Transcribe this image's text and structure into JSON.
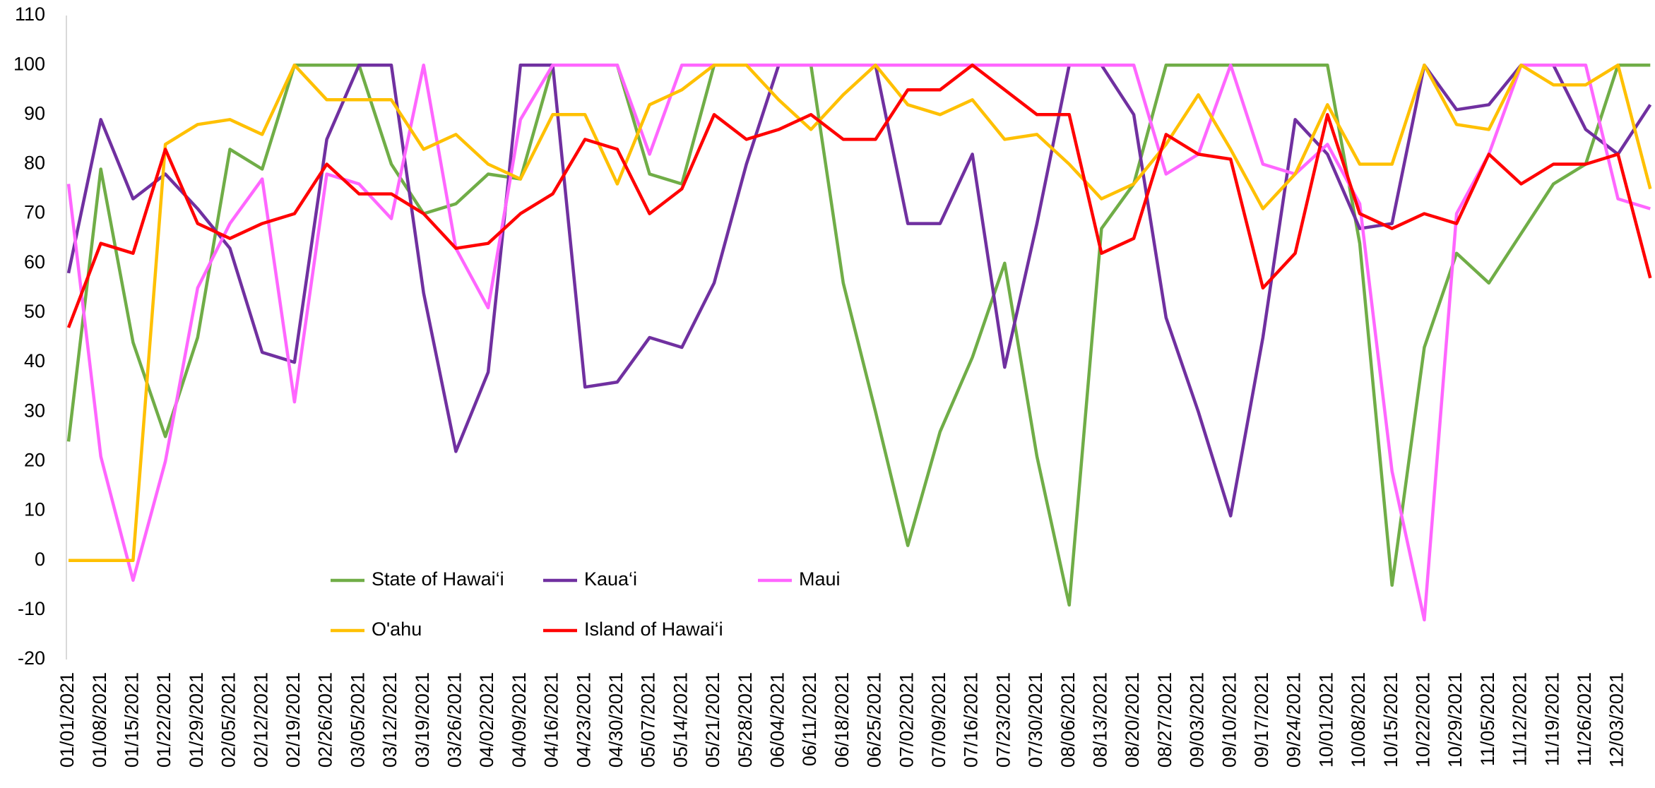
{
  "chart_data": {
    "type": "line",
    "categories": [
      "01/01/2021",
      "01/08/2021",
      "01/15/2021",
      "01/22/2021",
      "01/29/2021",
      "02/05/2021",
      "02/12/2021",
      "02/19/2021",
      "02/26/2021",
      "03/05/2021",
      "03/12/2021",
      "03/19/2021",
      "03/26/2021",
      "04/02/2021",
      "04/09/2021",
      "04/16/2021",
      "04/23/2021",
      "04/30/2021",
      "05/07/2021",
      "05/14/2021",
      "05/21/2021",
      "05/28/2021",
      "06/04/2021",
      "06/11/2021",
      "06/18/2021",
      "06/25/2021",
      "07/02/2021",
      "07/09/2021",
      "07/16/2021",
      "07/23/2021",
      "07/30/2021",
      "08/06/2021",
      "08/13/2021",
      "08/20/2021",
      "08/27/2021",
      "09/03/2021",
      "09/10/2021",
      "09/17/2021",
      "09/24/2021",
      "10/01/2021",
      "10/08/2021",
      "10/15/2021",
      "10/22/2021",
      "10/29/2021",
      "11/05/2021",
      "11/12/2021",
      "11/19/2021",
      "11/26/2021",
      "12/03/2021",
      null
    ],
    "series": [
      {
        "name": "State of Hawai‘i",
        "color": "#70ad47",
        "values": [
          24,
          79,
          44,
          25,
          45,
          83,
          79,
          100,
          100,
          100,
          80,
          70,
          72,
          78,
          77,
          100,
          100,
          100,
          78,
          76,
          100,
          100,
          100,
          100,
          56,
          30,
          3,
          26,
          41,
          60,
          21,
          -9,
          67,
          76,
          100,
          100,
          100,
          100,
          100,
          100,
          64,
          -5,
          43,
          62,
          56,
          66,
          76,
          80,
          100,
          100
        ]
      },
      {
        "name": "Kaua‘i",
        "color": "#7030a0",
        "values": [
          58,
          89,
          73,
          78,
          71,
          63,
          42,
          40,
          85,
          100,
          100,
          54,
          22,
          38,
          100,
          100,
          35,
          36,
          45,
          43,
          56,
          80,
          100,
          100,
          100,
          100,
          68,
          68,
          82,
          39,
          68,
          100,
          100,
          90,
          49,
          30,
          9,
          45,
          89,
          82,
          67,
          68,
          100,
          91,
          92,
          100,
          100,
          87,
          82,
          92
        ]
      },
      {
        "name": "Maui",
        "color": "#ff66ff",
        "values": [
          76,
          21,
          -4,
          20,
          55,
          68,
          77,
          32,
          78,
          76,
          69,
          100,
          63,
          51,
          89,
          100,
          100,
          100,
          82,
          100,
          100,
          100,
          100,
          100,
          100,
          100,
          100,
          100,
          100,
          100,
          100,
          100,
          100,
          100,
          78,
          82,
          100,
          80,
          78,
          84,
          72,
          18,
          -12,
          70,
          82,
          100,
          100,
          100,
          73,
          71
        ]
      },
      {
        "name": "O'ahu",
        "color": "#ffc000",
        "values": [
          0,
          0,
          0,
          84,
          88,
          89,
          86,
          100,
          93,
          93,
          93,
          83,
          86,
          80,
          77,
          90,
          90,
          76,
          92,
          95,
          100,
          100,
          93,
          87,
          94,
          100,
          92,
          90,
          93,
          85,
          86,
          80,
          73,
          76,
          84,
          94,
          83,
          71,
          78,
          92,
          80,
          80,
          100,
          88,
          87,
          100,
          96,
          96,
          100,
          75
        ]
      },
      {
        "name": "Island of Hawai‘i",
        "color": "#ff0000",
        "values": [
          47,
          64,
          62,
          83,
          68,
          65,
          68,
          70,
          80,
          74,
          74,
          70,
          63,
          64,
          70,
          74,
          85,
          83,
          70,
          75,
          90,
          85,
          87,
          90,
          85,
          85,
          95,
          95,
          100,
          95,
          90,
          90,
          62,
          65,
          86,
          82,
          81,
          55,
          62,
          90,
          70,
          67,
          70,
          68,
          82,
          76,
          80,
          80,
          82,
          57
        ]
      }
    ],
    "ylim": [
      -20,
      110
    ],
    "yticks": [
      -20,
      -10,
      0,
      10,
      20,
      30,
      40,
      50,
      60,
      70,
      80,
      90,
      100,
      110
    ],
    "grid": false
  }
}
